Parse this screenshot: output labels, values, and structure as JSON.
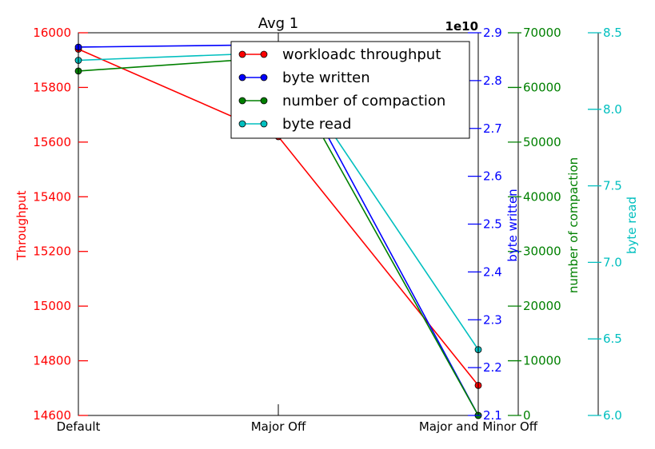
{
  "chart_data": {
    "type": "line",
    "title": "Avg 1",
    "categories": [
      "Default",
      "Major Off",
      "Major and Minor Off"
    ],
    "axes": [
      {
        "id": "throughput",
        "label": "Throughput",
        "color": "#ff0000",
        "ylim": [
          14600,
          16000
        ],
        "ticks": [
          14600,
          14800,
          15000,
          15200,
          15400,
          15600,
          15800,
          16000
        ],
        "tick_labels": [
          "14600",
          "14800",
          "15000",
          "15200",
          "15400",
          "15600",
          "15800",
          "16000"
        ]
      },
      {
        "id": "written",
        "label": "byte written",
        "color": "#0000ff",
        "ylim": [
          2.1,
          2.9
        ],
        "exponent_label": "1e10",
        "ticks": [
          2.1,
          2.2,
          2.3,
          2.4,
          2.5,
          2.6,
          2.7,
          2.8,
          2.9
        ],
        "tick_labels": [
          "2.1",
          "2.2",
          "2.3",
          "2.4",
          "2.5",
          "2.6",
          "2.7",
          "2.8",
          "2.9"
        ]
      },
      {
        "id": "compaction",
        "label": "number of compaction",
        "color": "#008000",
        "ylim": [
          0,
          70000
        ],
        "ticks": [
          0,
          10000,
          20000,
          30000,
          40000,
          50000,
          60000,
          70000
        ],
        "tick_labels": [
          "0",
          "10000",
          "20000",
          "30000",
          "40000",
          "50000",
          "60000",
          "70000"
        ]
      },
      {
        "id": "read",
        "label": "byte read",
        "color": "#00bfbf",
        "ylim": [
          6.0,
          8.5
        ],
        "ticks": [
          6.0,
          6.5,
          7.0,
          7.5,
          8.0,
          8.5
        ],
        "tick_labels": [
          "6.0",
          "6.5",
          "7.0",
          "7.5",
          "8.0",
          "8.5"
        ]
      }
    ],
    "series": [
      {
        "name": "workloadc throughput",
        "axis": "throughput",
        "color": "#ff0000",
        "values": [
          15940,
          15620,
          14710
        ]
      },
      {
        "name": "byte written",
        "axis": "written",
        "color": "#0000ff",
        "values": [
          2.87,
          2.875,
          2.1
        ]
      },
      {
        "name": "number of compaction",
        "axis": "compaction",
        "color": "#008000",
        "values": [
          63000,
          65500,
          0
        ]
      },
      {
        "name": "byte read",
        "axis": "read",
        "color": "#00bfbf",
        "values": [
          8.32,
          8.37,
          6.43
        ]
      }
    ],
    "legend": "top-right",
    "grid": false
  }
}
